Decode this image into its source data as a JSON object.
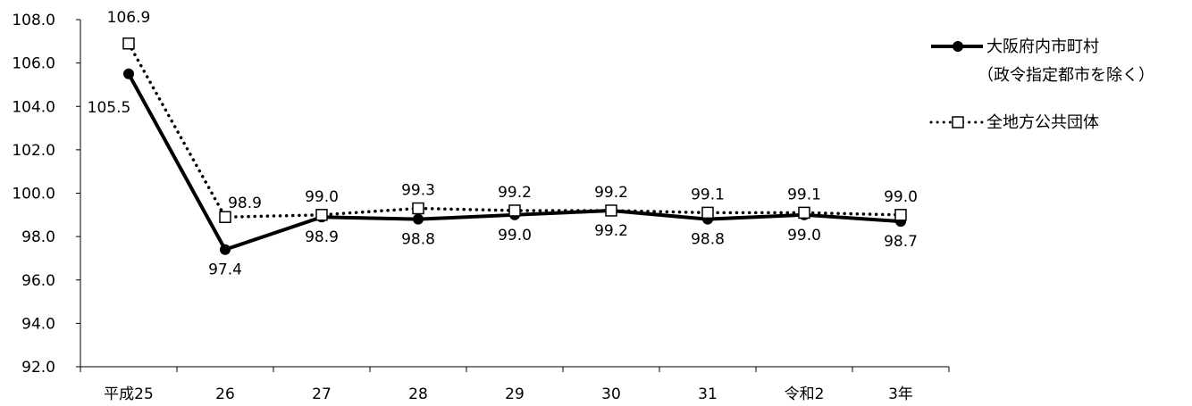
{
  "chart_data": {
    "type": "line",
    "categories": [
      "平成25",
      "26",
      "27",
      "28",
      "29",
      "30",
      "31",
      "令和2",
      "3年"
    ],
    "ylim": [
      92.0,
      108.0
    ],
    "yticks": [
      "92.0",
      "94.0",
      "96.0",
      "98.0",
      "100.0",
      "102.0",
      "104.0",
      "106.0",
      "108.0"
    ],
    "series": [
      {
        "name": "大阪府内市町村",
        "name_line2": "（政令指定都市を除く）",
        "style": "solid",
        "marker": "filled-circle",
        "color": "#000000",
        "values": [
          105.5,
          97.4,
          98.9,
          98.8,
          99.0,
          99.2,
          98.8,
          99.0,
          98.7
        ],
        "labels": [
          "105.5",
          "97.4",
          "98.9",
          "98.8",
          "99.0",
          "99.2",
          "98.8",
          "99.0",
          "98.7"
        ]
      },
      {
        "name": "全地方公共団体",
        "style": "dotted",
        "marker": "open-square",
        "color": "#000000",
        "values": [
          106.9,
          98.9,
          99.0,
          99.3,
          99.2,
          99.2,
          99.1,
          99.1,
          99.0
        ],
        "labels": [
          "106.9",
          "98.9",
          "99.0",
          "99.3",
          "99.2",
          "99.2",
          "99.1",
          "99.1",
          "99.0"
        ]
      }
    ],
    "legend_position": "right",
    "grid": false
  }
}
